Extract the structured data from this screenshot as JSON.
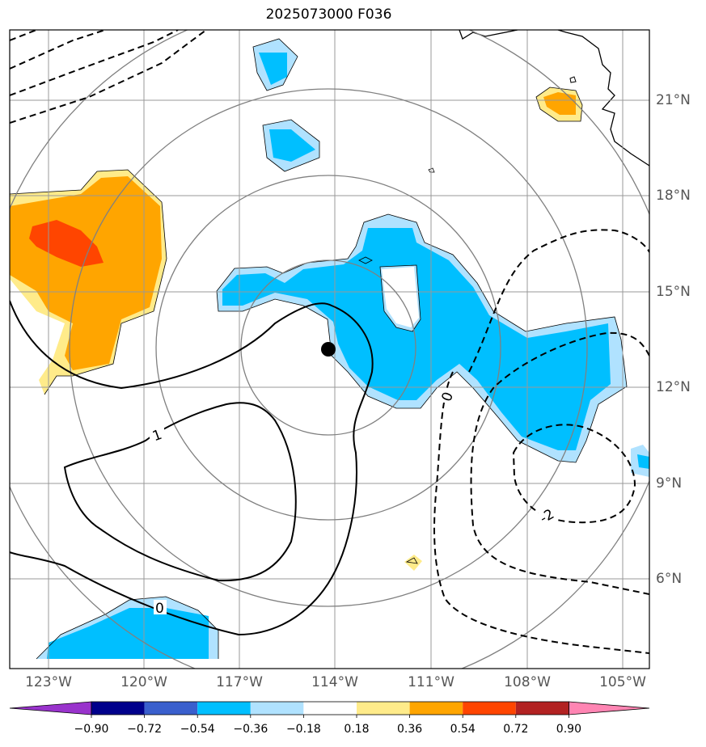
{
  "title": "2025073000 F036",
  "longitude_labels": [
    "123°W",
    "120°W",
    "117°W",
    "114°W",
    "111°W",
    "108°W",
    "105°W"
  ],
  "latitude_labels": [
    "21°N",
    "18°N",
    "15°N",
    "12°N",
    "9°N",
    "6°N"
  ],
  "contour_labels": [
    "1",
    "0",
    "0",
    "-2"
  ],
  "colorbar": {
    "tick_labels": [
      "−0.90",
      "−0.72",
      "−0.54",
      "−0.36",
      "−0.18",
      "0.18",
      "0.36",
      "0.54",
      "0.72",
      "0.90"
    ],
    "colors": [
      "#9933cc",
      "#00008b",
      "#3a5fcd",
      "#00bfff",
      "#b0e2ff",
      "#ffffff",
      "#ffeb8a",
      "#ffa500",
      "#ff4500",
      "#b22222",
      "#ff85b3"
    ]
  },
  "storm_center": {
    "lon": -114.2,
    "lat": 13.2
  },
  "range_rings": "concentric circles around storm center",
  "styles": {
    "grid_color": "#999999",
    "ring_color": "#808080",
    "label_color": "#555555"
  }
}
